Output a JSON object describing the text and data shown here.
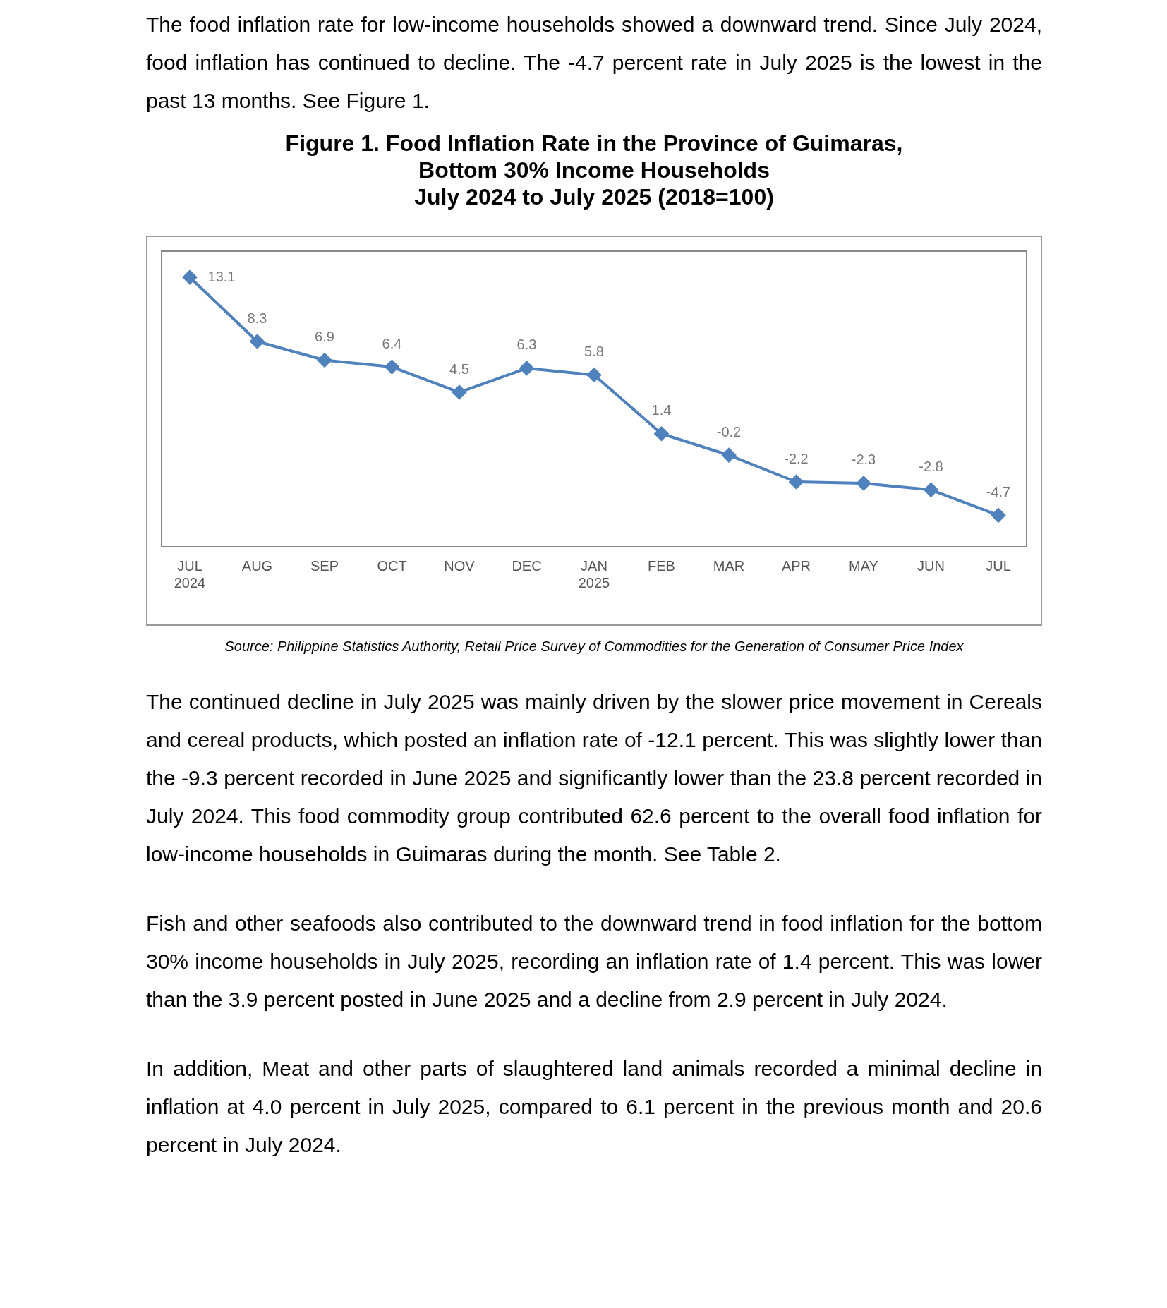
{
  "chart_data": {
    "type": "line",
    "title": "Figure 1. Food Inflation Rate in the Province of Guimaras,\nBottom 30% Income Households\nJuly 2024 to July 2025 (2018=100)",
    "categories": [
      "JUL 2024",
      "AUG",
      "SEP",
      "OCT",
      "NOV",
      "DEC",
      "JAN 2025",
      "FEB",
      "MAR",
      "APR",
      "MAY",
      "JUN",
      "JUL"
    ],
    "series": [
      {
        "color": "#4f81bd",
        "values": [
          13.1,
          8.3,
          6.9,
          6.4,
          4.5,
          6.3,
          5.8,
          1.4,
          -0.2,
          -2.2,
          -2.3,
          -2.8,
          -4.7
        ]
      }
    ],
    "data_labels": true,
    "marker": "diamond",
    "line_style": "solid",
    "grid": false,
    "legend": false,
    "tick_labels": "x",
    "annotations": [
      "The food inflation rate for low-income households showed a downward trend. Since July 2024, food inflation has continued to decline. The -4.7 percent rate in July 2025 is the lowest in the past 13 months. See Figure 1.",
      "Source: Philippine Statistics Authority, Retail Price Survey of Commodities for the Generation of Consumer Price Index",
      "The continued decline in July 2025 was mainly driven by the slower price movement in Cereals and cereal products, which posted an inflation rate of -12.1 percent. This was slightly lower than the -9.3 percent recorded in June 2025 and significantly lower than the 23.8 percent recorded in July 2024. This food commodity group contributed 62.6 percent to the overall food inflation for low-income households in Guimaras during the month. See Table 2.",
      "Fish and other seafoods also contributed to the downward trend in food inflation for the bottom 30% income households in July 2025, recording an inflation rate of 1.4 percent. This was lower than the 3.9 percent posted in June 2025 and a decline from 2.9 percent in July 2024.",
      "In addition, Meat and other parts of slaughtered land animals recorded a minimal decline in inflation at 4.0 percent in July 2025, compared to 6.1 percent in the previous month and 20.6 percent in July 2024."
    ]
  }
}
